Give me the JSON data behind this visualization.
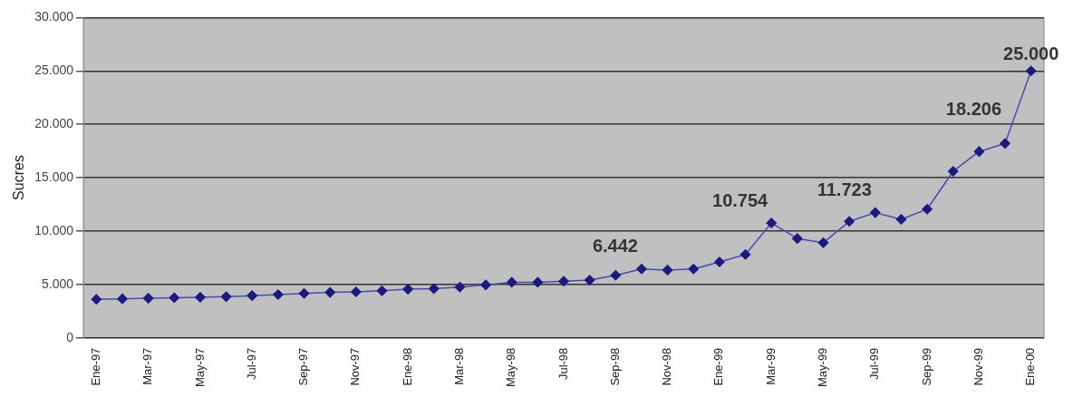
{
  "chart_data": {
    "type": "line",
    "ylabel": "Sucres",
    "categories": [
      "Ene-97",
      null,
      "Mar-97",
      null,
      "May-97",
      null,
      "Jul-97",
      null,
      "Sep-97",
      null,
      "Nov-97",
      null,
      "Ene-98",
      null,
      "Mar-98",
      null,
      "May-98",
      null,
      "Jul-98",
      null,
      "Sep-98",
      null,
      "Nov-98",
      null,
      "Ene-99",
      null,
      "Mar-99",
      null,
      "May-99",
      null,
      "Jul-99",
      null,
      "Sep-99",
      null,
      "Nov-99",
      null,
      "Ene-00"
    ],
    "series": [
      {
        "color": "#1a1a80",
        "values": [
          3600,
          3650,
          3700,
          3750,
          3800,
          3850,
          3950,
          4050,
          4150,
          4250,
          4300,
          4400,
          4550,
          4600,
          4750,
          4950,
          5200,
          5200,
          5300,
          5400,
          5850,
          6442,
          6350,
          6450,
          7100,
          7800,
          10754,
          9300,
          8900,
          10900,
          11723,
          11100,
          12050,
          15600,
          17450,
          18206,
          25000
        ],
        "value_labels": [
          null,
          null,
          null,
          null,
          null,
          null,
          null,
          null,
          null,
          null,
          null,
          null,
          null,
          null,
          null,
          null,
          null,
          null,
          null,
          null,
          null,
          "6.442",
          null,
          null,
          null,
          null,
          "10.754",
          null,
          null,
          null,
          "11.723",
          null,
          null,
          null,
          null,
          "18.206",
          "25.000"
        ]
      }
    ],
    "ylim": [
      0,
      30000
    ],
    "yticks": [
      {
        "value": 0,
        "label": "0"
      },
      {
        "value": 5000,
        "label": "5.000"
      },
      {
        "value": 10000,
        "label": "10.000"
      },
      {
        "value": 15000,
        "label": "15.000"
      },
      {
        "value": 20000,
        "label": "20.000"
      },
      {
        "value": 25000,
        "label": "25.000"
      },
      {
        "value": 30000,
        "label": "30.000"
      }
    ],
    "grid": "y",
    "legend": false,
    "marker": "diamond",
    "line_style": "solid"
  }
}
